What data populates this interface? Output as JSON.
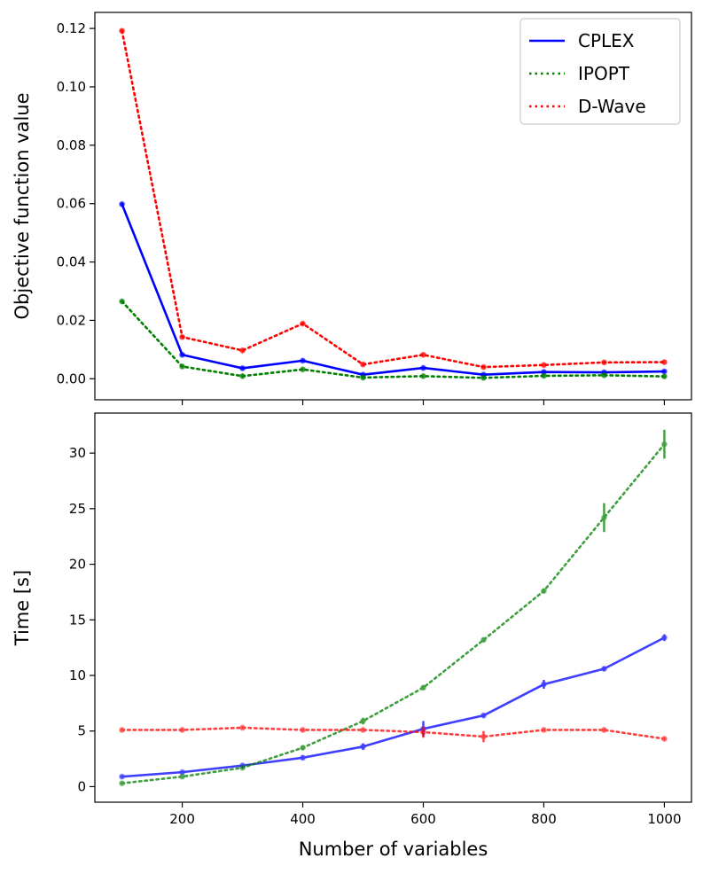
{
  "chart_data": [
    {
      "type": "line",
      "title": "",
      "xlabel": "",
      "ylabel": "Objective function value",
      "xlim": [
        55,
        1045
      ],
      "ylim": [
        -0.0072,
        0.1255
      ],
      "x": [
        100,
        200,
        300,
        400,
        500,
        600,
        700,
        800,
        900,
        1000
      ],
      "x_ticks": [
        200,
        400,
        600,
        800,
        1000
      ],
      "y_ticks": [
        "0.00",
        "0.02",
        "0.04",
        "0.06",
        "0.08",
        "0.10",
        "0.12"
      ],
      "legend_position": "top-right",
      "series": [
        {
          "name": "CPLEX",
          "color": "#0000ff",
          "linestyle": "solid",
          "values": [
            0.0598,
            0.0082,
            0.0036,
            0.0062,
            0.0014,
            0.0037,
            0.0014,
            0.0023,
            0.0022,
            0.0025
          ]
        },
        {
          "name": "IPOPT",
          "color": "#008000",
          "linestyle": "dotted",
          "values": [
            0.0265,
            0.0042,
            0.0009,
            0.0032,
            0.0004,
            0.0009,
            0.0003,
            0.001,
            0.0012,
            0.0008
          ]
        },
        {
          "name": "D-Wave",
          "color": "#ff0000",
          "linestyle": "dotted",
          "values": [
            0.1192,
            0.0143,
            0.0097,
            0.0189,
            0.0049,
            0.0082,
            0.004,
            0.0047,
            0.0056,
            0.0057
          ]
        }
      ]
    },
    {
      "type": "line",
      "title": "",
      "xlabel": "Number of variables",
      "ylabel": "Time [s]",
      "xlim": [
        55,
        1045
      ],
      "ylim": [
        -1.4,
        33.6
      ],
      "x": [
        100,
        200,
        300,
        400,
        500,
        600,
        700,
        800,
        900,
        1000
      ],
      "x_ticks": [
        200,
        400,
        600,
        800,
        1000
      ],
      "y_ticks": [
        0,
        5,
        10,
        15,
        20,
        25,
        30
      ],
      "series": [
        {
          "name": "CPLEX",
          "color": "#0000ff",
          "linestyle": "solid",
          "values": [
            0.9,
            1.3,
            1.9,
            2.6,
            3.6,
            5.2,
            6.4,
            9.2,
            10.6,
            13.4
          ],
          "errors": [
            0.1,
            0.1,
            0.1,
            0.2,
            0.3,
            0.7,
            0.2,
            0.4,
            0.2,
            0.3
          ]
        },
        {
          "name": "IPOPT",
          "color": "#008000",
          "linestyle": "dotted",
          "values": [
            0.3,
            0.9,
            1.7,
            3.5,
            5.9,
            8.9,
            13.2,
            17.6,
            24.2,
            30.8
          ],
          "errors": [
            0.1,
            0.1,
            0.1,
            0.2,
            0.3,
            0.2,
            0.2,
            0.2,
            1.3,
            1.3
          ]
        },
        {
          "name": "D-Wave",
          "color": "#ff0000",
          "linestyle": "dotted",
          "values": [
            5.1,
            5.1,
            5.3,
            5.1,
            5.1,
            4.9,
            4.5,
            5.1,
            5.1,
            4.3
          ],
          "errors": [
            0.1,
            0.1,
            0.1,
            0.1,
            0.1,
            0.5,
            0.5,
            0.1,
            0.1,
            0.1
          ]
        }
      ]
    }
  ]
}
